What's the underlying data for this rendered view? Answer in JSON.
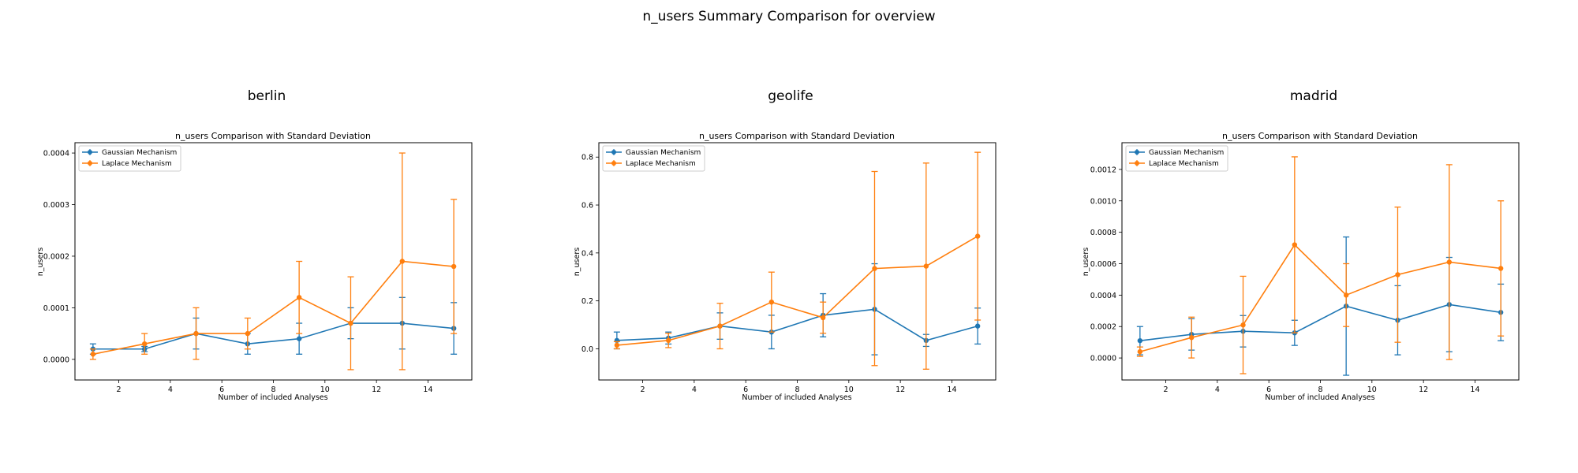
{
  "figure": {
    "title": "n_users Summary Comparison for overview"
  },
  "colors": {
    "gaussian": "#1f77b4",
    "laplace": "#ff7f0e",
    "axis": "#000000"
  },
  "chart_data": [
    {
      "type": "line",
      "panel_title": "berlin",
      "title": "n_users Comparison with Standard Deviation",
      "xlabel": "Number of included Analyses",
      "ylabel": "n_users",
      "xlim": [
        0.3,
        15.7
      ],
      "ylim": [
        -4e-05,
        0.00042
      ],
      "xticks": [
        2,
        4,
        6,
        8,
        10,
        12,
        14
      ],
      "yticks": [
        0,
        0.0001,
        0.0002,
        0.0003,
        0.0004
      ],
      "ytick_labels": [
        "0.0000",
        "0.0001",
        "0.0002",
        "0.0003",
        "0.0004"
      ],
      "legend_position": "upper-left",
      "x": [
        1,
        3,
        5,
        7,
        9,
        11,
        13,
        15
      ],
      "series": [
        {
          "name": "Gaussian Mechanism",
          "color_key": "gaussian",
          "values": [
            2e-05,
            2e-05,
            5e-05,
            3e-05,
            4e-05,
            7e-05,
            7e-05,
            6e-05
          ],
          "std": [
            1e-05,
            5e-06,
            3e-05,
            2e-05,
            3e-05,
            3e-05,
            5e-05,
            5e-05
          ]
        },
        {
          "name": "Laplace Mechanism",
          "color_key": "laplace",
          "values": [
            1e-05,
            3e-05,
            5e-05,
            5e-05,
            0.00012,
            7e-05,
            0.00019,
            0.00018
          ],
          "std": [
            1e-05,
            2e-05,
            5e-05,
            3e-05,
            7e-05,
            9e-05,
            0.00021,
            0.00013
          ]
        }
      ]
    },
    {
      "type": "line",
      "panel_title": "geolife",
      "title": "n_users Comparison with Standard Deviation",
      "xlabel": "Number of included Analyses",
      "ylabel": "n_users",
      "xlim": [
        0.3,
        15.7
      ],
      "ylim": [
        -0.13,
        0.86
      ],
      "xticks": [
        2,
        4,
        6,
        8,
        10,
        12,
        14
      ],
      "yticks": [
        0,
        0.2,
        0.4,
        0.6,
        0.8
      ],
      "ytick_labels": [
        "0.0",
        "0.2",
        "0.4",
        "0.6",
        "0.8"
      ],
      "legend_position": "upper-left",
      "x": [
        1,
        3,
        5,
        7,
        9,
        11,
        13,
        15
      ],
      "series": [
        {
          "name": "Gaussian Mechanism",
          "color_key": "gaussian",
          "values": [
            0.035,
            0.045,
            0.095,
            0.07,
            0.14,
            0.165,
            0.035,
            0.095
          ],
          "std": [
            0.035,
            0.025,
            0.055,
            0.07,
            0.09,
            0.19,
            0.025,
            0.075
          ]
        },
        {
          "name": "Laplace Mechanism",
          "color_key": "laplace",
          "values": [
            0.015,
            0.035,
            0.095,
            0.195,
            0.13,
            0.335,
            0.345,
            0.47
          ],
          "std": [
            0.015,
            0.03,
            0.095,
            0.125,
            0.065,
            0.405,
            0.43,
            0.35
          ]
        }
      ]
    },
    {
      "type": "line",
      "panel_title": "madrid",
      "title": "n_users Comparison with Standard Deviation",
      "xlabel": "Number of included Analyses",
      "ylabel": "n_users",
      "xlim": [
        0.3,
        15.7
      ],
      "ylim": [
        -0.00014,
        0.00137
      ],
      "xticks": [
        2,
        4,
        6,
        8,
        10,
        12,
        14
      ],
      "yticks": [
        0,
        0.0002,
        0.0004,
        0.0006,
        0.0008,
        0.001,
        0.0012
      ],
      "ytick_labels": [
        "0.0000",
        "0.0002",
        "0.0004",
        "0.0006",
        "0.0008",
        "0.0010",
        "0.0012"
      ],
      "legend_position": "upper-left",
      "x": [
        1,
        3,
        5,
        7,
        9,
        11,
        13,
        15
      ],
      "series": [
        {
          "name": "Gaussian Mechanism",
          "color_key": "gaussian",
          "values": [
            0.00011,
            0.00015,
            0.00017,
            0.00016,
            0.00033,
            0.00024,
            0.00034,
            0.00029
          ],
          "std": [
            9e-05,
            0.0001,
            0.0001,
            8e-05,
            0.00044,
            0.00022,
            0.0003,
            0.00018
          ]
        },
        {
          "name": "Laplace Mechanism",
          "color_key": "laplace",
          "values": [
            4e-05,
            0.00013,
            0.00021,
            0.00072,
            0.0004,
            0.00053,
            0.00061,
            0.00057
          ],
          "std": [
            3e-05,
            0.00013,
            0.00031,
            0.00056,
            0.0002,
            0.00043,
            0.00062,
            0.00043
          ]
        }
      ]
    }
  ]
}
